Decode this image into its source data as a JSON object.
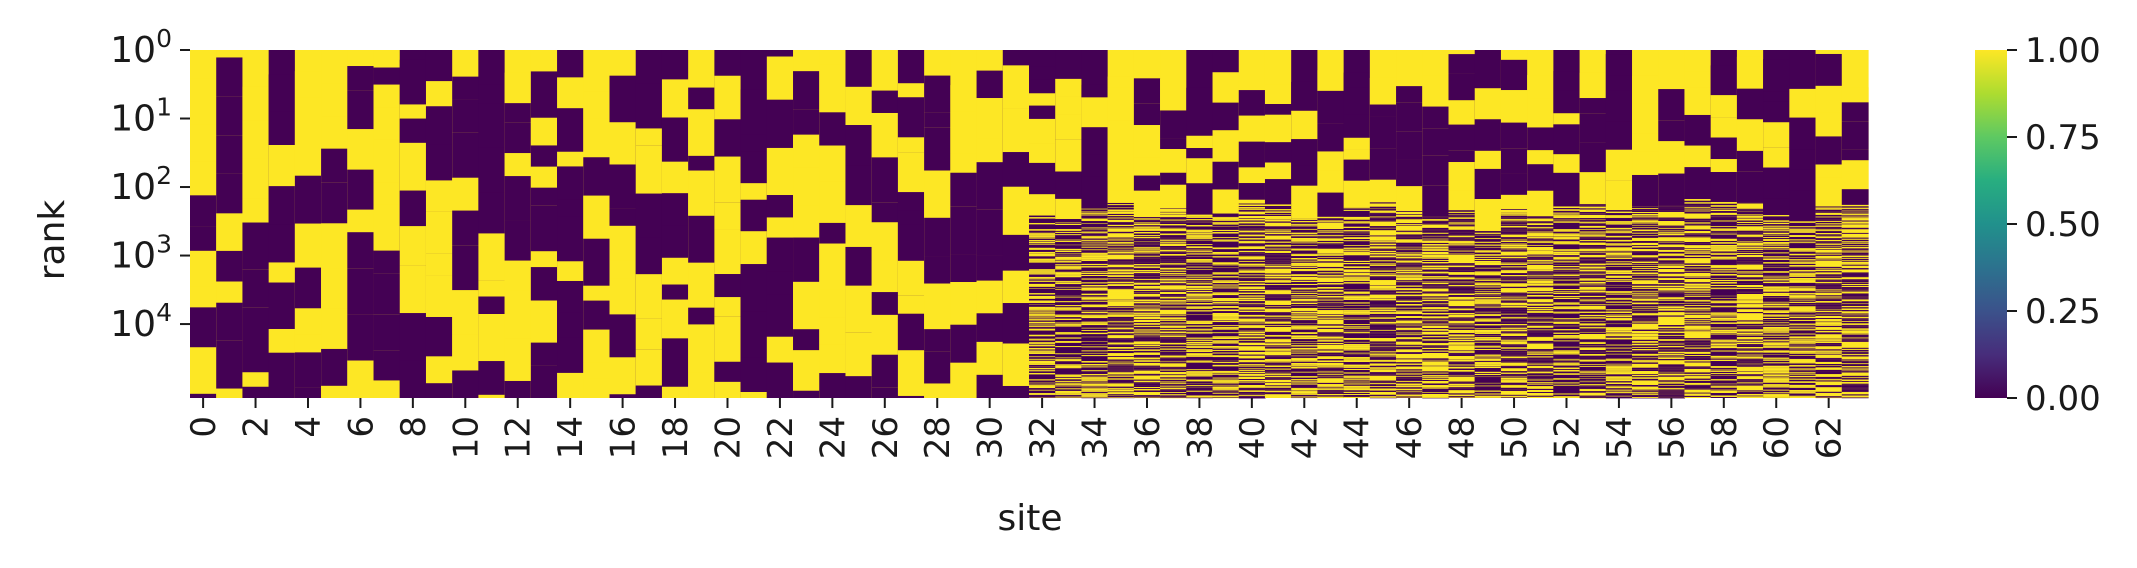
{
  "chart_data": {
    "type": "heatmap",
    "title": "",
    "xlabel": "site",
    "ylabel": "rank",
    "x_tick_labels": [
      "0",
      "2",
      "4",
      "6",
      "8",
      "10",
      "12",
      "14",
      "16",
      "18",
      "20",
      "22",
      "24",
      "26",
      "28",
      "30",
      "32",
      "34",
      "36",
      "38",
      "40",
      "42",
      "44",
      "46",
      "48",
      "50",
      "52",
      "54",
      "56",
      "58",
      "60",
      "62"
    ],
    "x_tick_sites": [
      0,
      2,
      4,
      6,
      8,
      10,
      12,
      14,
      16,
      18,
      20,
      22,
      24,
      26,
      28,
      30,
      32,
      34,
      36,
      38,
      40,
      42,
      44,
      46,
      48,
      50,
      52,
      54,
      56,
      58,
      60,
      62
    ],
    "num_sites": 64,
    "y_scale": "log",
    "y_tick_base": "10",
    "y_tick_exponents": [
      "0",
      "1",
      "2",
      "3",
      "4"
    ],
    "y_tick_values": [
      1,
      10,
      100,
      1000,
      10000
    ],
    "ylim": [
      1,
      120000
    ],
    "colorbar": {
      "colormap": "viridis",
      "range": [
        0,
        1
      ],
      "tick_labels": [
        "1.00",
        "0.75",
        "0.50",
        "0.25",
        "0.00"
      ],
      "tick_values": [
        1.0,
        0.75,
        0.5,
        0.25,
        0.0
      ]
    },
    "colors": {
      "high": "#fde725",
      "low": "#440154"
    },
    "legend": "colorbar right",
    "grid": false,
    "columns": [
      {
        "site": 0,
        "top": 1,
        "start": 1
      },
      {
        "site": 1,
        "top": 1,
        "start": 0
      },
      {
        "site": 2,
        "top": 1,
        "start": 1
      },
      {
        "site": 3,
        "top": 0,
        "start": 0
      },
      {
        "site": 4,
        "top": 1,
        "start": 1
      },
      {
        "site": 5,
        "top": 1,
        "start": 1
      },
      {
        "site": 6,
        "top": 1,
        "start": 0
      },
      {
        "site": 7,
        "top": 1,
        "start": 0
      },
      {
        "site": 8,
        "top": 0,
        "start": 0
      },
      {
        "site": 9,
        "top": 0,
        "start": 1
      },
      {
        "site": 10,
        "top": 1,
        "start": 0
      },
      {
        "site": 11,
        "top": 0,
        "start": 0
      },
      {
        "site": 12,
        "top": 1,
        "start": 1
      },
      {
        "site": 13,
        "top": 1,
        "start": 0
      },
      {
        "site": 14,
        "top": 0,
        "start": 1
      },
      {
        "site": 15,
        "top": 1,
        "start": 1
      },
      {
        "site": 16,
        "top": 1,
        "start": 0
      },
      {
        "site": 17,
        "top": 0,
        "start": 0
      },
      {
        "site": 18,
        "top": 0,
        "start": 1
      },
      {
        "site": 19,
        "top": 1,
        "start": 0
      },
      {
        "site": 20,
        "top": 0,
        "start": 1
      },
      {
        "site": 21,
        "top": 0,
        "start": 0
      },
      {
        "site": 22,
        "top": 0,
        "start": 1
      },
      {
        "site": 23,
        "top": 1,
        "start": 0
      },
      {
        "site": 24,
        "top": 1,
        "start": 1
      },
      {
        "site": 25,
        "top": 0,
        "start": 1
      },
      {
        "site": 26,
        "top": 1,
        "start": 0
      },
      {
        "site": 27,
        "top": 0,
        "start": 1
      },
      {
        "site": 28,
        "top": 1,
        "start": 0
      },
      {
        "site": 29,
        "top": 1,
        "start": 1
      },
      {
        "site": 30,
        "top": 1,
        "start": 0
      },
      {
        "site": 31,
        "top": 0,
        "start": 1
      },
      {
        "site": 32,
        "top": 0,
        "start": 0
      },
      {
        "site": 33,
        "top": 0,
        "start": 1
      },
      {
        "site": 34,
        "top": 0,
        "start": 0
      },
      {
        "site": 35,
        "top": 1,
        "start": 1
      },
      {
        "site": 36,
        "top": 1,
        "start": 0
      },
      {
        "site": 37,
        "top": 1,
        "start": 1
      },
      {
        "site": 38,
        "top": 0,
        "start": 0
      },
      {
        "site": 39,
        "top": 0,
        "start": 1
      },
      {
        "site": 40,
        "top": 1,
        "start": 0
      },
      {
        "site": 41,
        "top": 1,
        "start": 1
      },
      {
        "site": 42,
        "top": 0,
        "start": 0
      },
      {
        "site": 43,
        "top": 1,
        "start": 1
      },
      {
        "site": 44,
        "top": 0,
        "start": 0
      },
      {
        "site": 45,
        "top": 1,
        "start": 1
      },
      {
        "site": 46,
        "top": 1,
        "start": 0
      },
      {
        "site": 47,
        "top": 1,
        "start": 1
      },
      {
        "site": 48,
        "top": 1,
        "start": 0
      },
      {
        "site": 49,
        "top": 0,
        "start": 1
      },
      {
        "site": 50,
        "top": 1,
        "start": 0
      },
      {
        "site": 51,
        "top": 1,
        "start": 1
      },
      {
        "site": 52,
        "top": 0,
        "start": 0
      },
      {
        "site": 53,
        "top": 1,
        "start": 1
      },
      {
        "site": 54,
        "top": 0,
        "start": 0
      },
      {
        "site": 55,
        "top": 1,
        "start": 1
      },
      {
        "site": 56,
        "top": 1,
        "start": 0
      },
      {
        "site": 57,
        "top": 1,
        "start": 1
      },
      {
        "site": 58,
        "top": 0,
        "start": 0
      },
      {
        "site": 59,
        "top": 1,
        "start": 1
      },
      {
        "site": 60,
        "top": 0,
        "start": 0
      },
      {
        "site": 61,
        "top": 0,
        "start": 1
      },
      {
        "site": 62,
        "top": 1,
        "start": 0
      },
      {
        "site": 63,
        "top": 1,
        "start": 1
      }
    ]
  }
}
